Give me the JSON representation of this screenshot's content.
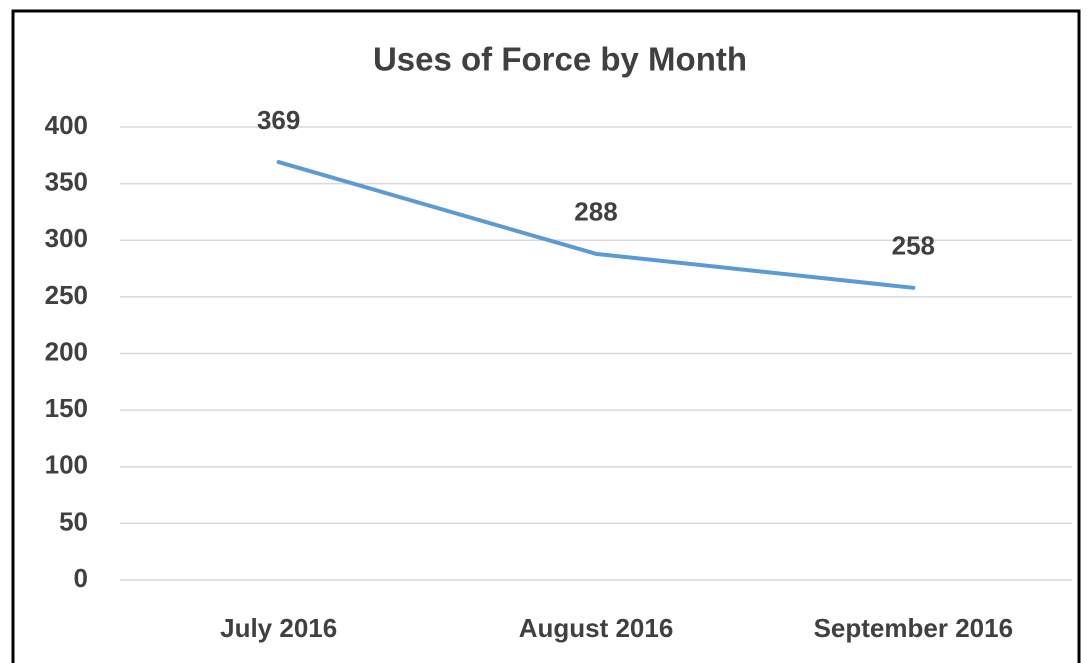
{
  "chart_data": {
    "type": "line",
    "title": "Uses of Force by Month",
    "categories": [
      "July 2016",
      "August 2016",
      "September 2016"
    ],
    "series": [
      {
        "name": "Uses of Force",
        "color": "#5b9bd5",
        "values": [
          369,
          288,
          258
        ]
      }
    ],
    "ylim": [
      0,
      400
    ],
    "yticks": [
      0,
      50,
      100,
      150,
      200,
      250,
      300,
      350,
      400
    ],
    "grid": true
  }
}
